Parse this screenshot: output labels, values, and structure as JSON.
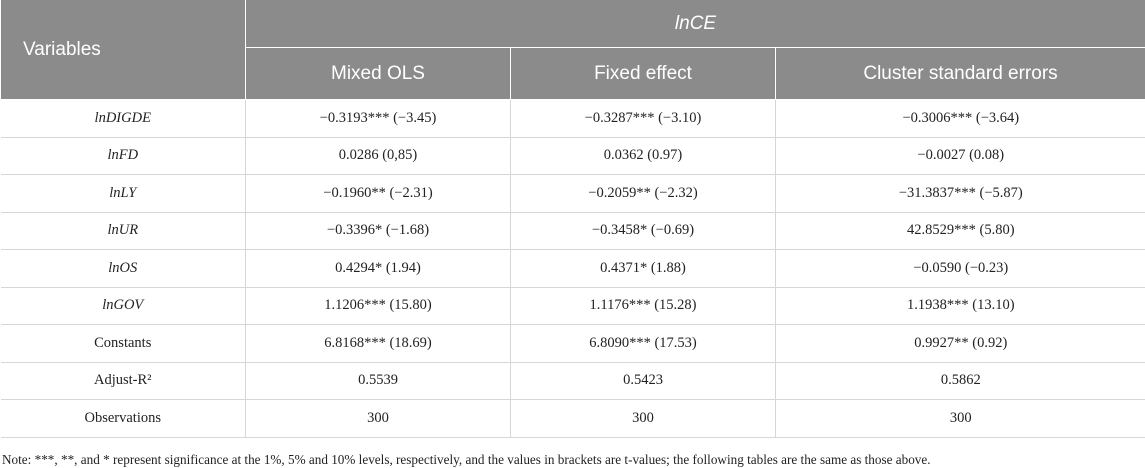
{
  "header": {
    "variables": "Variables",
    "group": "lnCE",
    "columns": [
      "Mixed OLS",
      "Fixed effect",
      "Cluster standard errors"
    ]
  },
  "table": {
    "rows": [
      [
        "lnDIGDE",
        "−0.3193*** (−3.45)",
        "−0.3287*** (−3.10)",
        "−0.3006*** (−3.64)"
      ],
      [
        "lnFD",
        "0.0286 (0,85)",
        "0.0362 (0.97)",
        "−0.0027 (0.08)"
      ],
      [
        "lnLY",
        "−0.1960** (−2.31)",
        "−0.2059** (−2.32)",
        "−31.3837*** (−5.87)"
      ],
      [
        "lnUR",
        "−0.3396* (−1.68)",
        "−0.3458* (−0.69)",
        "42.8529*** (5.80)"
      ],
      [
        "lnOS",
        "0.4294* (1.94)",
        "0.4371* (1.88)",
        "−0.0590 (−0.23)"
      ],
      [
        "lnGOV",
        "1.1206*** (15.80)",
        "1.1176*** (15.28)",
        "1.1938*** (13.10)"
      ],
      [
        "Constants",
        "6.8168*** (18.69)",
        "6.8090*** (17.53)",
        "0.9927** (0.92)"
      ],
      [
        "Adjust-R²",
        "0.5539",
        "0.5423",
        "0.5862"
      ],
      [
        "Observations",
        "300",
        "300",
        "300"
      ]
    ]
  },
  "note": "Note: ***, **, and * represent significance at the 1%, 5% and 10% levels, respectively, and the values in brackets are t-values; the following tables are the same as those above."
}
